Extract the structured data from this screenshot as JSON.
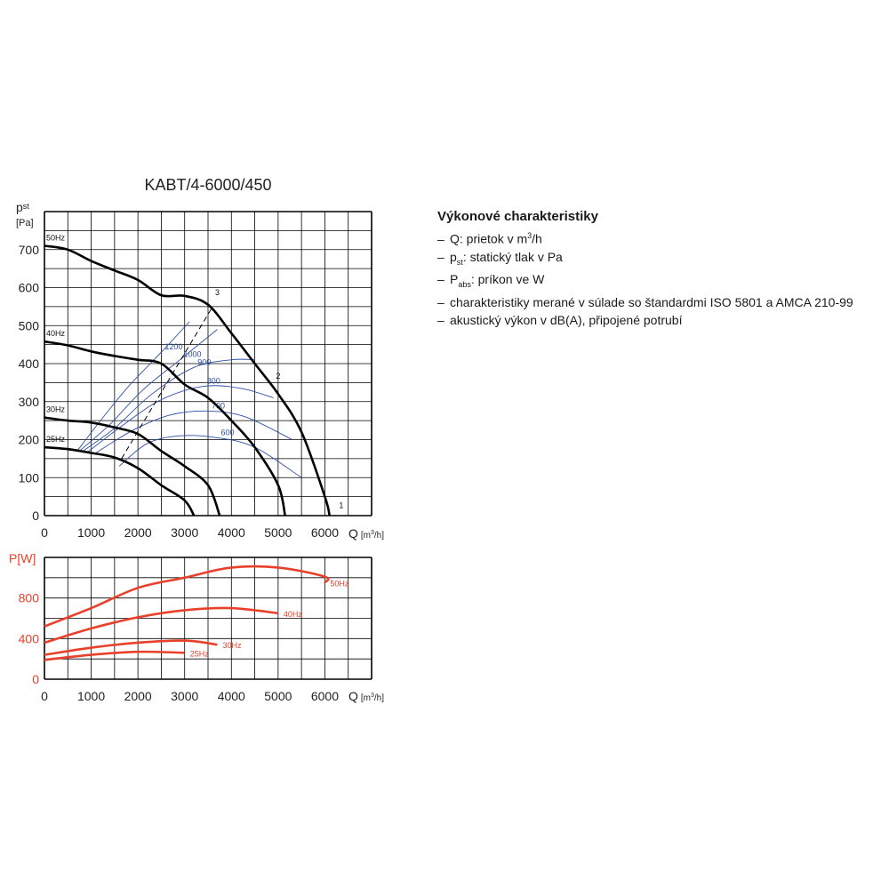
{
  "chart_data": [
    {
      "type": "line",
      "title": "KABT/4-6000/450",
      "ylabel_main": "p",
      "ylabel_sub": "st",
      "yunit": "[Pa]",
      "xlabel": "Q",
      "xunit_pre": "[m",
      "xunit_sup": "3",
      "xunit_post": "/h]",
      "xlim": [
        0,
        7000
      ],
      "ylim": [
        0,
        750
      ],
      "grid": true,
      "xticks": [
        "0",
        "1000",
        "2000",
        "3000",
        "4000",
        "5000",
        "6000"
      ],
      "yticks": [
        "0",
        "100",
        "200",
        "300",
        "400",
        "500",
        "600",
        "700"
      ],
      "series": [
        {
          "name": "50Hz",
          "color": "#000000",
          "x": [
            0,
            500,
            1000,
            1500,
            2000,
            2500,
            3000,
            3500,
            4000,
            4500,
            5000,
            5500,
            6000,
            6100
          ],
          "y": [
            710,
            700,
            670,
            645,
            620,
            580,
            578,
            555,
            480,
            400,
            320,
            220,
            50,
            0
          ]
        },
        {
          "name": "40Hz",
          "color": "#000000",
          "x": [
            0,
            500,
            1000,
            1500,
            2000,
            2500,
            3000,
            3500,
            4000,
            4500,
            5000,
            5150
          ],
          "y": [
            458,
            448,
            432,
            420,
            410,
            400,
            345,
            310,
            250,
            180,
            80,
            0
          ]
        },
        {
          "name": "30Hz",
          "color": "#000000",
          "x": [
            0,
            500,
            1000,
            1500,
            2000,
            2500,
            3000,
            3500,
            3750
          ],
          "y": [
            258,
            250,
            245,
            232,
            215,
            170,
            130,
            80,
            0
          ]
        },
        {
          "name": "25Hz",
          "color": "#000000",
          "x": [
            0,
            500,
            1000,
            1500,
            2000,
            2500,
            3000,
            3200
          ],
          "y": [
            180,
            175,
            165,
            153,
            125,
            80,
            40,
            0
          ]
        }
      ],
      "curve_labels": [
        "1",
        "2",
        "3"
      ],
      "isolines": [
        {
          "label": "1200",
          "color": "#2e4fa3",
          "x": [
            700,
            1200,
            1800,
            2500,
            3100
          ],
          "y": [
            170,
            250,
            340,
            430,
            510
          ]
        },
        {
          "label": "1000",
          "color": "#2e4fa3",
          "x": [
            750,
            1400,
            2100,
            2900,
            3700
          ],
          "y": [
            170,
            240,
            330,
            410,
            490
          ]
        },
        {
          "label": "900",
          "color": "#2e4fa3",
          "x": [
            800,
            1500,
            2300,
            3200,
            4000,
            4500
          ],
          "y": [
            168,
            230,
            320,
            390,
            410,
            410
          ]
        },
        {
          "label": "800",
          "color": "#2e4fa3",
          "x": [
            900,
            1700,
            2500,
            3400,
            4200,
            4900
          ],
          "y": [
            165,
            240,
            305,
            340,
            335,
            310
          ]
        },
        {
          "label": "700",
          "color": "#2e4fa3",
          "x": [
            1100,
            1900,
            2700,
            3500,
            4300,
            5300
          ],
          "y": [
            165,
            225,
            265,
            275,
            260,
            200
          ]
        },
        {
          "label": "600",
          "color": "#2e4fa3",
          "x": [
            1600,
            2200,
            2900,
            3700,
            4500,
            5500
          ],
          "y": [
            130,
            190,
            210,
            205,
            180,
            100
          ]
        }
      ],
      "dashed_line": {
        "x": [
          1650,
          3600
        ],
        "y": [
          150,
          550
        ]
      }
    },
    {
      "type": "line",
      "ylabel": "P[W]",
      "xlabel": "Q",
      "xunit_pre": "[m",
      "xunit_sup": "3",
      "xunit_post": "/h]",
      "xlim": [
        0,
        7000
      ],
      "ylim": [
        0,
        1200
      ],
      "grid": true,
      "xticks": [
        "0",
        "1000",
        "2000",
        "3000",
        "4000",
        "5000",
        "6000"
      ],
      "yticks": [
        "0",
        "400",
        "800"
      ],
      "series": [
        {
          "name": "50Hz",
          "color": "#e8402a",
          "x": [
            0,
            1000,
            2000,
            3000,
            4000,
            5000,
            6000,
            6000
          ],
          "y": [
            520,
            700,
            900,
            1000,
            1100,
            1100,
            1010,
            950
          ]
        },
        {
          "name": "40Hz",
          "color": "#e8402a",
          "x": [
            0,
            1000,
            2000,
            3000,
            4000,
            5000
          ],
          "y": [
            360,
            500,
            610,
            680,
            700,
            650
          ]
        },
        {
          "name": "30Hz",
          "color": "#e8402a",
          "x": [
            0,
            1000,
            2000,
            3000,
            3700
          ],
          "y": [
            240,
            310,
            360,
            380,
            340
          ]
        },
        {
          "name": "25Hz",
          "color": "#e8402a",
          "x": [
            0,
            1000,
            2000,
            3000
          ],
          "y": [
            190,
            240,
            270,
            260
          ]
        }
      ]
    }
  ],
  "legend": {
    "title": "Výkonové charakteristiky",
    "items": [
      {
        "dash": "–",
        "pre": "Q: prietok v m",
        "sup": "3",
        "post": "/h"
      },
      {
        "dash": "–",
        "pre": "p",
        "sub": "st",
        "post": ": statický tlak v Pa"
      },
      {
        "dash": "–",
        "pre": "P",
        "sub": "abs",
        "post": ": príkon ve W"
      },
      {
        "dash": "–",
        "pre": "charakteristiky merané v súlade so štandardmi ISO 5801 a AMCA 210-99"
      },
      {
        "dash": "–",
        "pre": "akustický výkon v dB(A), připojené potrubí"
      }
    ]
  }
}
